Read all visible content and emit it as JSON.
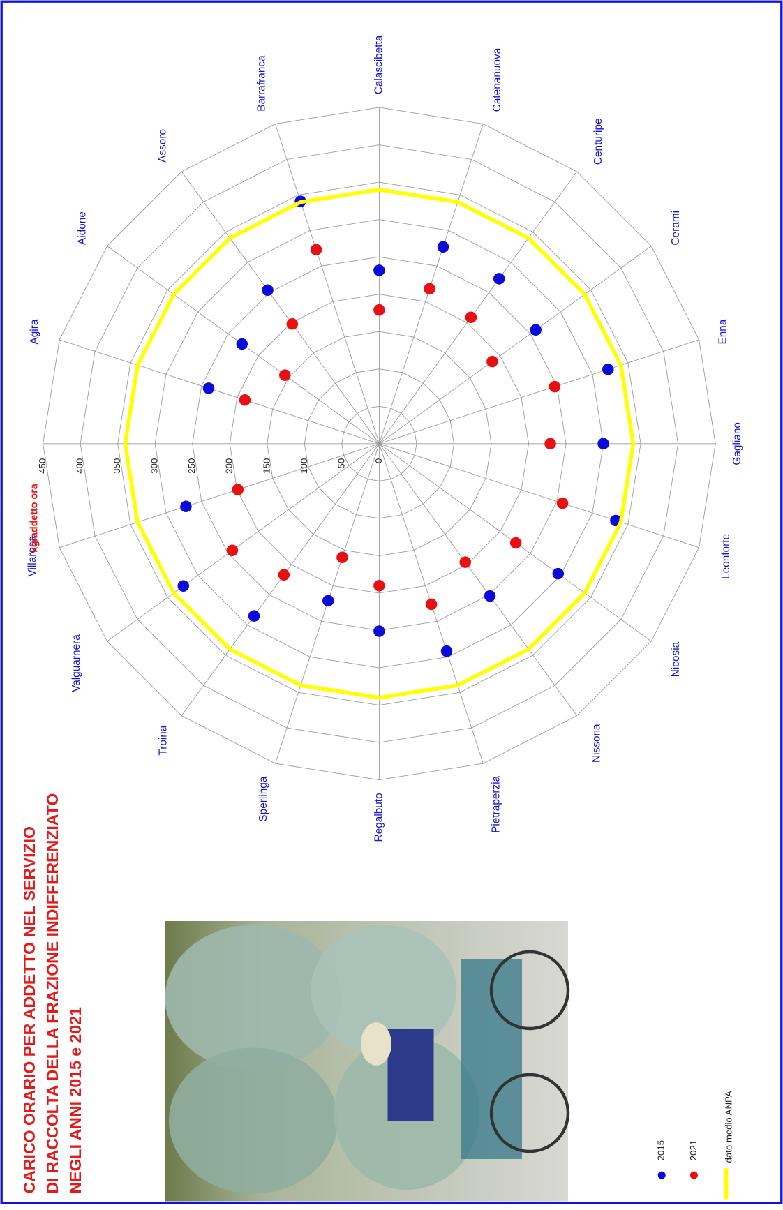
{
  "chart_data": {
    "type": "radar",
    "title": [
      "CARICO ORARIO PER ADDETTO NEL SERVIZIO",
      "DI RACCOLTA DELLA FRAZIONE INDIFFERENZIATO",
      "NEGLI ANNI 2015 e 2021"
    ],
    "axis_label": "kg/addetto ora",
    "categories": [
      null,
      "Agira",
      "Aidone",
      "Assoro",
      "Barrafranca",
      "Calascibetta",
      "Catenanuova",
      "Centuripe",
      "Cerami",
      "Enna",
      "Gagliano",
      "Leonforte",
      "Nicosia",
      "Nissoria",
      "Pietraperzia",
      "Regalbuto",
      "Sperlinga",
      "Troina",
      "Valguarnera",
      "Villarosa"
    ],
    "rlim": [
      0,
      450
    ],
    "rticks": [
      0,
      50,
      100,
      150,
      200,
      250,
      300,
      350,
      400,
      450
    ],
    "grid": true,
    "series": [
      {
        "name": "2015",
        "color": "#0b0bd9",
        "style": "markers",
        "values": [
          null,
          240,
          227,
          254,
          341,
          232,
          277,
          273,
          259,
          322,
          300,
          333,
          296,
          252,
          292,
          251,
          221,
          285,
          324,
          272
        ]
      },
      {
        "name": "2021",
        "color": "#e81010",
        "style": "markers",
        "values": [
          null,
          189,
          156,
          198,
          273,
          179,
          218,
          209,
          187,
          247,
          229,
          258,
          226,
          196,
          226,
          190,
          160,
          217,
          243,
          199
        ]
      },
      {
        "name": "dato medio ANPA",
        "color": "#ffff00",
        "style": "line",
        "values": [
          340,
          340,
          340,
          340,
          340,
          340,
          340,
          340,
          340,
          340,
          340,
          340,
          340,
          340,
          340,
          340,
          340,
          340,
          340,
          340
        ]
      }
    ]
  }
}
